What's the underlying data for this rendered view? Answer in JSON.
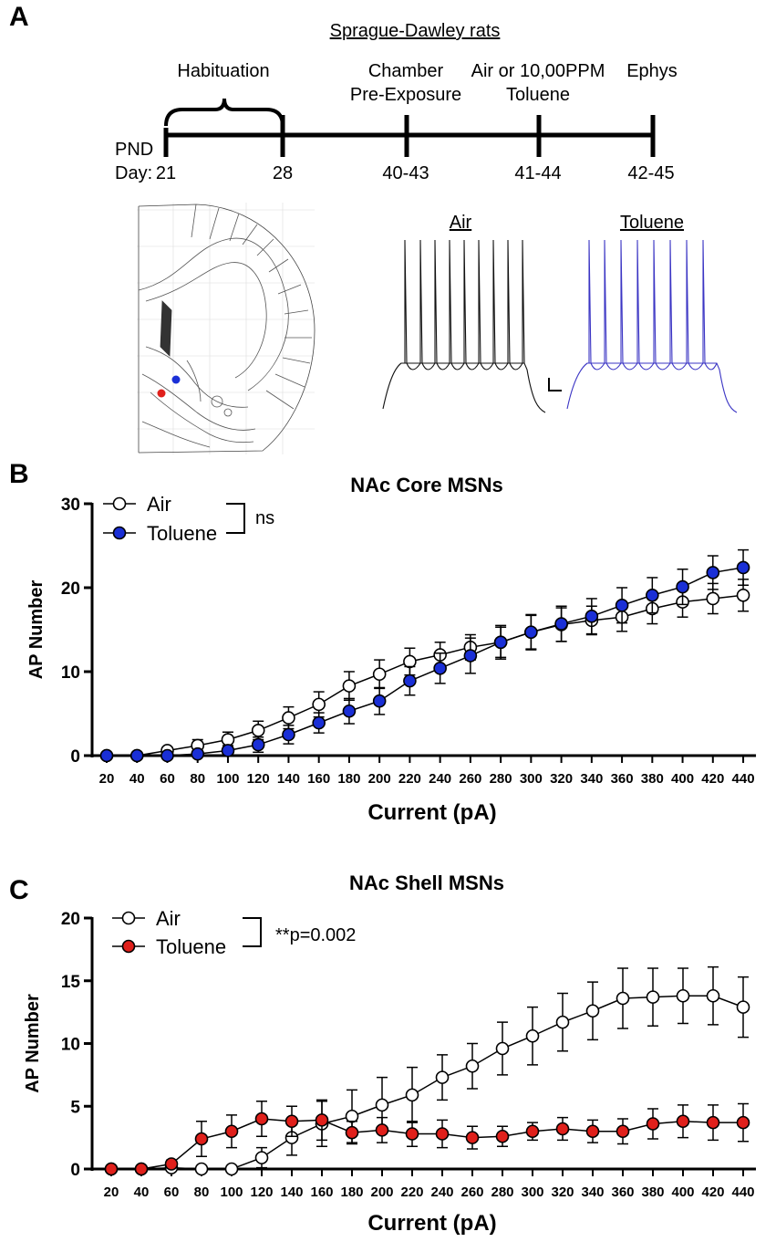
{
  "panel_a": {
    "letter": "A",
    "title": "Sprague-Dawley rats",
    "stage_habituation": "Habituation",
    "stage_chamber_line1": "Chamber",
    "stage_chamber_line2": "Pre-Exposure",
    "stage_exposure_line1": "Air or 10,00PPM",
    "stage_exposure_line2": "Toluene",
    "stage_ephys": "Ephys",
    "pnd_label": "PND",
    "day_label": "Day:",
    "days": [
      "21",
      "28",
      "40-43",
      "41-44",
      "42-45"
    ],
    "trace_air_label": "Air",
    "trace_toluene_label": "Toluene",
    "colors": {
      "air_trace": "#111111",
      "toluene_trace": "#3b35c4",
      "core_dot": "#1a2fd6",
      "shell_dot": "#e0201b"
    }
  },
  "chart_data": [
    {
      "type": "line",
      "letter": "B",
      "title": "NAc Core MSNs",
      "xlabel": "Current (pA)",
      "ylabel": "AP Number",
      "categories": [
        "20",
        "40",
        "60",
        "80",
        "100",
        "120",
        "140",
        "160",
        "180",
        "200",
        "220",
        "240",
        "260",
        "280",
        "300",
        "320",
        "340",
        "360",
        "380",
        "400",
        "420",
        "440"
      ],
      "ylim": [
        0,
        30
      ],
      "yticks": [
        "0",
        "10",
        "20",
        "30"
      ],
      "significance": "ns",
      "series": [
        {
          "name": "Air",
          "fill": "#ffffff",
          "values": [
            0,
            0,
            0.6,
            1.2,
            1.9,
            3.0,
            4.5,
            6.1,
            8.3,
            9.7,
            11.2,
            12.0,
            12.9,
            13.5,
            14.7,
            15.6,
            16.1,
            16.5,
            17.5,
            18.3,
            18.7,
            19.1
          ],
          "errors": [
            0,
            0,
            0.4,
            0.7,
            0.9,
            1.1,
            1.3,
            1.5,
            1.7,
            1.7,
            1.6,
            1.5,
            1.5,
            1.8,
            2.0,
            2.0,
            1.7,
            1.7,
            1.8,
            1.8,
            1.8,
            1.9
          ]
        },
        {
          "name": "Toluene",
          "fill": "#1a2fd6",
          "values": [
            0,
            0,
            0,
            0.2,
            0.6,
            1.3,
            2.5,
            3.9,
            5.3,
            6.5,
            8.9,
            10.4,
            11.9,
            13.5,
            14.7,
            15.7,
            16.6,
            17.9,
            19.1,
            20.1,
            21.8,
            22.4
          ],
          "errors": [
            0,
            0,
            0,
            0.3,
            0.6,
            0.9,
            1.1,
            1.2,
            1.5,
            1.6,
            1.7,
            1.8,
            2.1,
            2.0,
            2.1,
            2.1,
            2.1,
            2.1,
            2.1,
            2.1,
            2.0,
            2.1
          ]
        }
      ]
    },
    {
      "type": "line",
      "letter": "C",
      "title": "NAc Shell MSNs",
      "xlabel": "Current (pA)",
      "ylabel": "AP Number",
      "categories": [
        "20",
        "40",
        "60",
        "80",
        "100",
        "120",
        "140",
        "160",
        "180",
        "200",
        "220",
        "240",
        "260",
        "280",
        "300",
        "320",
        "340",
        "360",
        "380",
        "400",
        "420",
        "440"
      ],
      "ylim": [
        0,
        20
      ],
      "yticks": [
        "0",
        "5",
        "10",
        "15",
        "20"
      ],
      "significance": "**p=0.002",
      "series": [
        {
          "name": "Air",
          "fill": "#ffffff",
          "values": [
            0,
            0,
            0.1,
            0,
            0,
            0.9,
            2.5,
            3.6,
            4.2,
            5.1,
            5.9,
            7.3,
            8.2,
            9.6,
            10.6,
            11.7,
            12.6,
            13.6,
            13.7,
            13.8,
            13.8,
            12.9
          ],
          "errors": [
            0,
            0,
            0.2,
            0,
            0,
            0.8,
            1.4,
            1.8,
            2.1,
            2.2,
            2.2,
            1.8,
            1.8,
            2.1,
            2.3,
            2.3,
            2.3,
            2.4,
            2.3,
            2.2,
            2.3,
            2.4
          ]
        },
        {
          "name": "Toluene",
          "fill": "#e0201b",
          "values": [
            0,
            0,
            0.4,
            2.4,
            3.0,
            4.0,
            3.8,
            3.9,
            2.9,
            3.1,
            2.8,
            2.8,
            2.5,
            2.6,
            3.0,
            3.2,
            3.0,
            3.0,
            3.6,
            3.8,
            3.7,
            3.7
          ],
          "errors": [
            0,
            0,
            0.3,
            1.4,
            1.3,
            1.4,
            1.2,
            1.6,
            0.9,
            1.0,
            1.0,
            1.1,
            0.9,
            0.8,
            0.7,
            0.9,
            0.9,
            1.0,
            1.2,
            1.3,
            1.4,
            1.5
          ]
        }
      ]
    }
  ]
}
